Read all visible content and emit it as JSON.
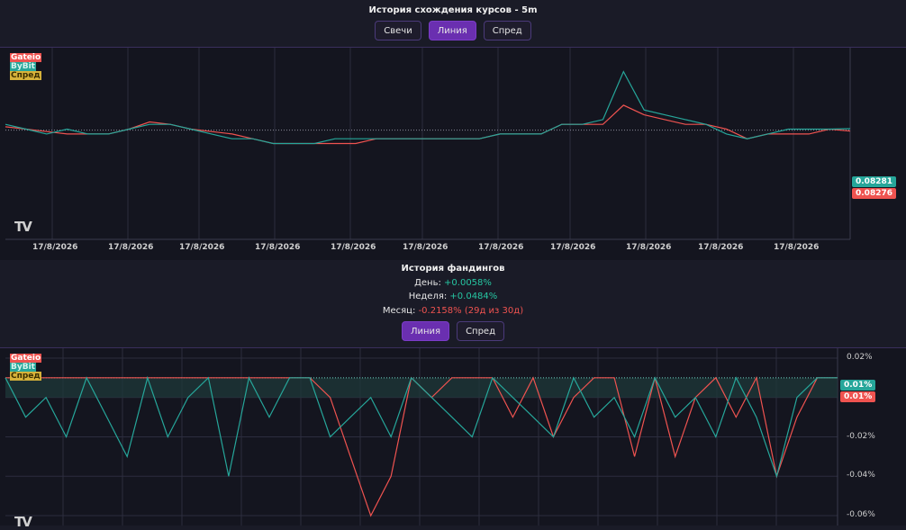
{
  "rates_chart": {
    "title": "История схождения курсов - 5m",
    "tabs": [
      {
        "label": "Свечи",
        "active": false
      },
      {
        "label": "Линия",
        "active": true
      },
      {
        "label": "Спред",
        "active": false
      }
    ],
    "legend": [
      "Gateio",
      "ByBit",
      "Спред"
    ],
    "x_labels": [
      "17/8/2026",
      "17/8/2026",
      "17/8/2026",
      "17/8/2026",
      "17/8/2026",
      "17/8/2026",
      "17/8/2026",
      "17/8/2026",
      "17/8/2026",
      "17/8/2026",
      "17/8/2026"
    ],
    "last_bybit": "0.08281",
    "last_gateio": "0.08276",
    "logo": "TV"
  },
  "funding": {
    "title": "История фандингов",
    "day_label": "День:",
    "day_value": "+0.0058%",
    "week_label": "Неделя:",
    "week_value": "+0.0484%",
    "month_label": "Месяц:",
    "month_value": "-0.2158% (29д из 30д)",
    "tabs": [
      {
        "label": "Линия",
        "active": true
      },
      {
        "label": "Спред",
        "active": false
      }
    ],
    "legend": [
      "Gateio",
      "ByBit",
      "Спред"
    ],
    "y_labels": [
      "0.02%",
      "0%",
      "-0.02%",
      "-0.04%",
      "-0.06%"
    ],
    "last_bybit": "0.01%",
    "last_gateio": "0.01%",
    "logo": "TV"
  },
  "colors": {
    "gateio": "#ef5350",
    "bybit": "#26a69a",
    "spread": "#d6b23a",
    "accent": "#6a2fb0"
  },
  "chart_data": [
    {
      "type": "line",
      "title": "История схождения курсов - 5m",
      "ylim": [
        0.0805,
        0.0845
      ],
      "x_labels": [
        "17/8/2026"
      ],
      "series": [
        {
          "name": "Gateio",
          "values": [
            0.08285,
            0.0828,
            0.08275,
            0.0827,
            0.0827,
            0.0827,
            0.0828,
            0.08295,
            0.0829,
            0.0828,
            0.08275,
            0.0827,
            0.0826,
            0.0825,
            0.0825,
            0.0825,
            0.0825,
            0.0825,
            0.0826,
            0.0826,
            0.0826,
            0.0826,
            0.0826,
            0.0826,
            0.0827,
            0.0827,
            0.0827,
            0.0829,
            0.0829,
            0.0829,
            0.0833,
            0.0831,
            0.083,
            0.0829,
            0.0829,
            0.0828,
            0.0826,
            0.0827,
            0.0827,
            0.0827,
            0.0828,
            0.08276
          ]
        },
        {
          "name": "ByBit",
          "values": [
            0.0829,
            0.0828,
            0.0827,
            0.0828,
            0.0827,
            0.0827,
            0.0828,
            0.0829,
            0.0829,
            0.0828,
            0.0827,
            0.0826,
            0.0826,
            0.0825,
            0.0825,
            0.0825,
            0.0826,
            0.0826,
            0.0826,
            0.0826,
            0.0826,
            0.0826,
            0.0826,
            0.0826,
            0.0827,
            0.0827,
            0.0827,
            0.0829,
            0.0829,
            0.083,
            0.084,
            0.0832,
            0.0831,
            0.083,
            0.0829,
            0.0827,
            0.0826,
            0.0827,
            0.0828,
            0.0828,
            0.0828,
            0.08281
          ]
        }
      ]
    },
    {
      "type": "line",
      "title": "История фандингов",
      "ylim": [
        -0.065,
        0.025
      ],
      "y_ticks": [
        "0.02%",
        "0%",
        "-0.02%",
        "-0.04%",
        "-0.06%"
      ],
      "series": [
        {
          "name": "Gateio",
          "values": [
            0.01,
            0.01,
            0.01,
            0.01,
            0.01,
            0.01,
            0.01,
            0.01,
            0.01,
            0.01,
            0.01,
            0.01,
            0.01,
            0.01,
            0.01,
            0.01,
            0.0,
            -0.03,
            -0.06,
            -0.04,
            0.01,
            0.0,
            0.01,
            0.01,
            0.01,
            -0.01,
            0.01,
            -0.02,
            0.0,
            0.01,
            0.01,
            -0.03,
            0.01,
            -0.03,
            0.0,
            0.01,
            -0.01,
            0.01,
            -0.04,
            -0.01,
            0.01,
            0.01
          ]
        },
        {
          "name": "ByBit",
          "values": [
            0.01,
            -0.01,
            0.0,
            -0.02,
            0.01,
            -0.01,
            -0.03,
            0.01,
            -0.02,
            0.0,
            0.01,
            -0.04,
            0.01,
            -0.01,
            0.01,
            0.01,
            -0.02,
            -0.01,
            0.0,
            -0.02,
            0.01,
            0.0,
            -0.01,
            -0.02,
            0.01,
            0.0,
            -0.01,
            -0.02,
            0.01,
            -0.01,
            0.0,
            -0.02,
            0.01,
            -0.01,
            0.0,
            -0.02,
            0.01,
            -0.01,
            -0.04,
            0.0,
            0.01,
            0.01
          ]
        }
      ]
    }
  ]
}
